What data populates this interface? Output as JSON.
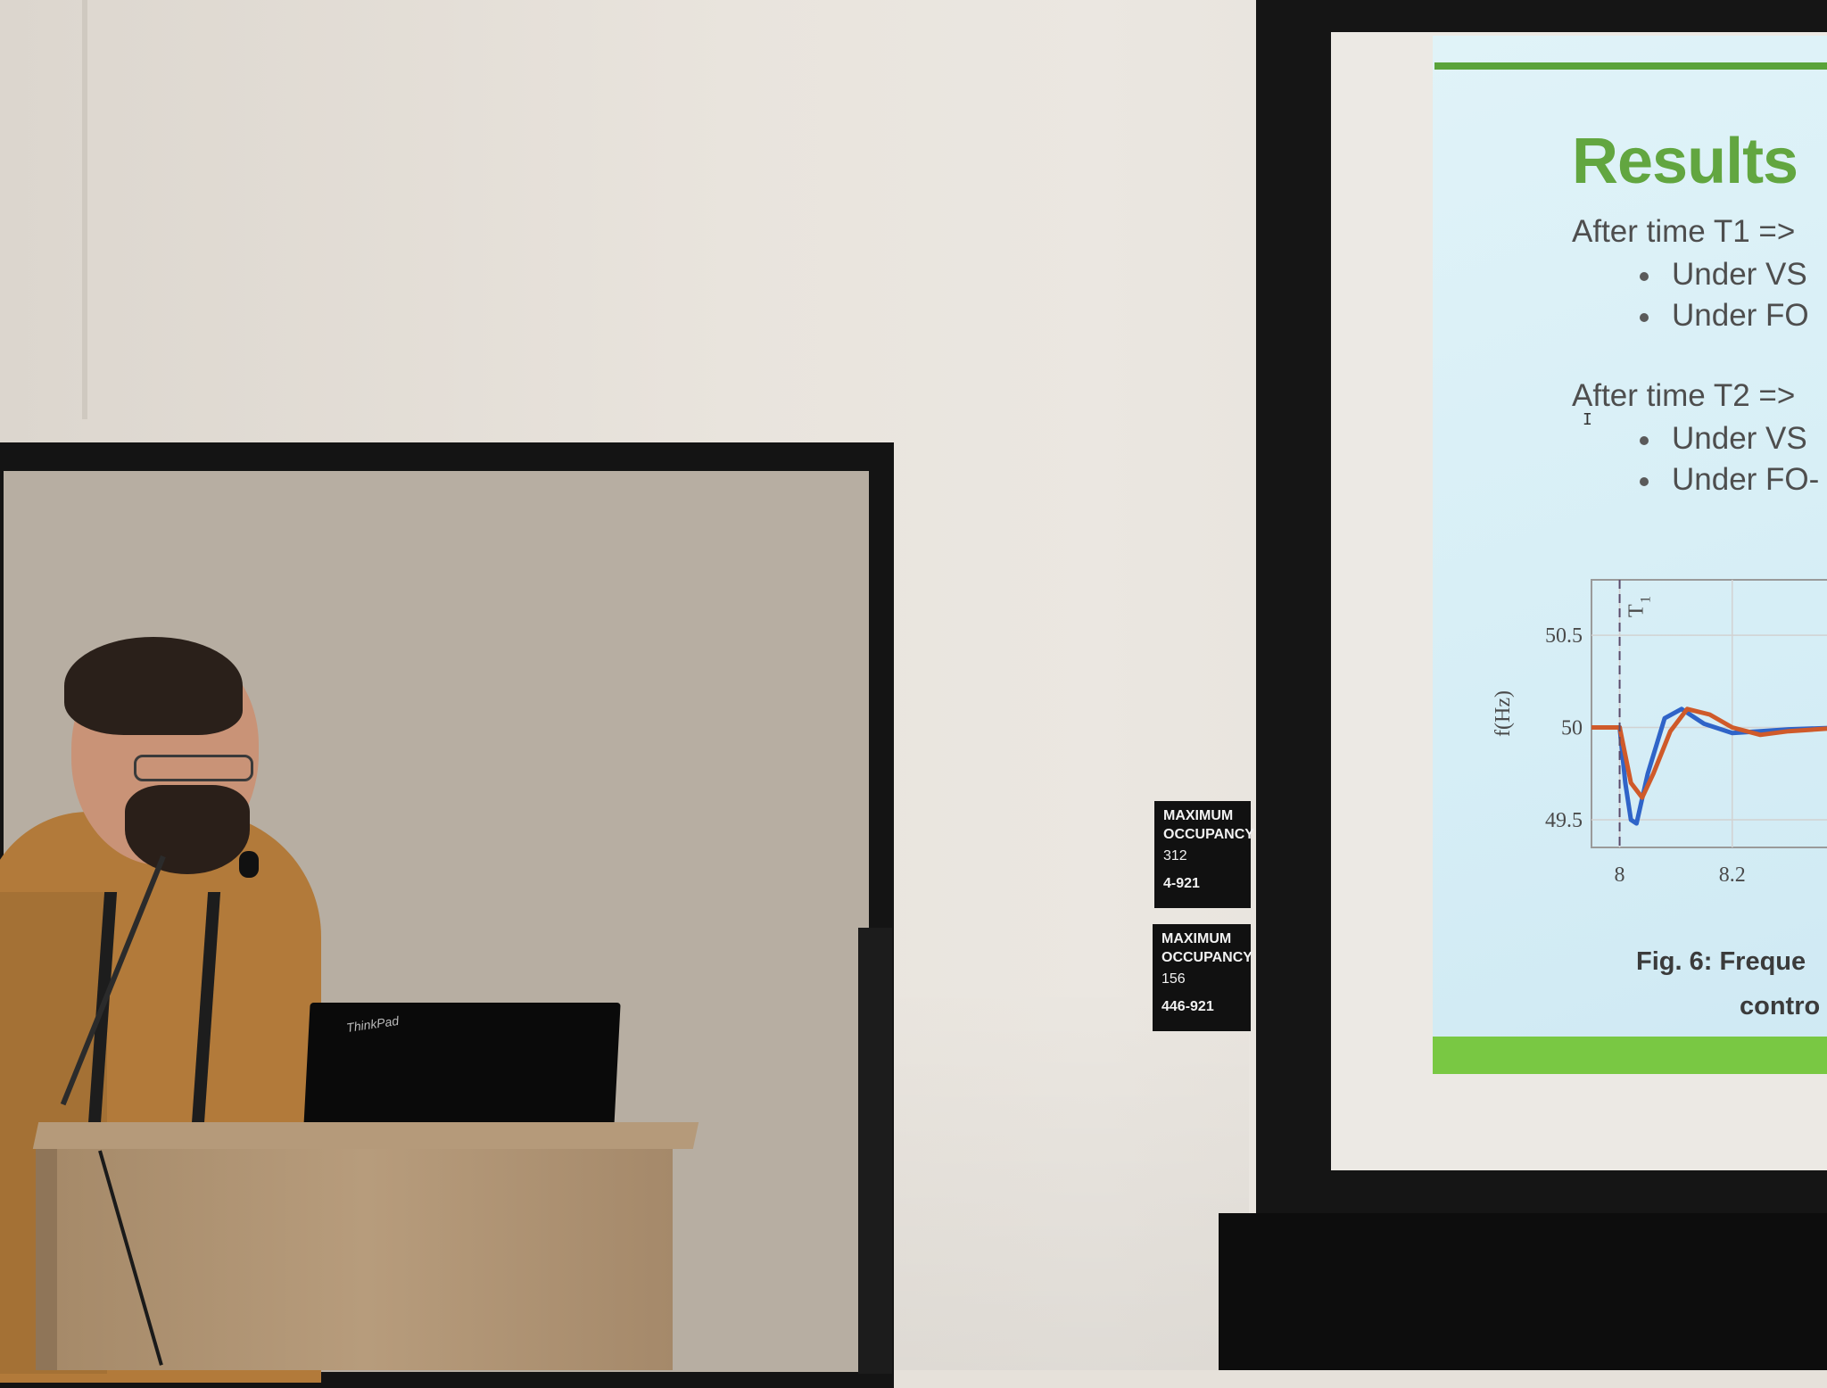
{
  "slide": {
    "title": "Results",
    "section_t1": {
      "heading": "After time T1 =>",
      "bullets": [
        "Under VS",
        "Under  FO"
      ]
    },
    "section_t2": {
      "heading": "After time T2 =>",
      "bullets": [
        "Under VS",
        "Under FO-"
      ]
    },
    "text_cursor": "I",
    "figure_caption": [
      "Fig. 6: Freque",
      "contro"
    ]
  },
  "chart_data": {
    "type": "line",
    "title": "",
    "xlabel": "",
    "ylabel": "f(Hz)",
    "x_ticks": [
      "8",
      "8.2"
    ],
    "y_ticks": [
      "50.5",
      "50",
      "49.5"
    ],
    "xlim": [
      7.95,
      8.4
    ],
    "ylim": [
      49.35,
      50.8
    ],
    "grid": true,
    "annotations": [
      {
        "text": "T",
        "subscript": "1",
        "x": 8.0
      }
    ],
    "series": [
      {
        "color": "#2f64c8",
        "x": [
          7.95,
          8.0,
          8.01,
          8.02,
          8.03,
          8.05,
          8.08,
          8.11,
          8.15,
          8.2,
          8.25,
          8.3,
          8.4
        ],
        "y": [
          50.0,
          50.0,
          49.7,
          49.5,
          49.48,
          49.75,
          50.05,
          50.1,
          50.02,
          49.97,
          49.98,
          49.99,
          50.0
        ]
      },
      {
        "color": "#cf5a2a",
        "x": [
          7.95,
          8.0,
          8.01,
          8.02,
          8.04,
          8.06,
          8.09,
          8.12,
          8.16,
          8.2,
          8.25,
          8.3,
          8.4
        ],
        "y": [
          50.0,
          50.0,
          49.85,
          49.7,
          49.62,
          49.75,
          49.98,
          50.1,
          50.07,
          50.0,
          49.96,
          49.98,
          50.0
        ]
      }
    ]
  },
  "signs": [
    {
      "title": "MAXIMUM",
      "subtitle": "OCCUPANCY",
      "number": "312",
      "code": "4-921"
    },
    {
      "title": "MAXIMUM",
      "subtitle": "OCCUPANCY",
      "number": "156",
      "code": "446-921"
    }
  ],
  "laptop": {
    "logo": "ThinkPad"
  },
  "colors": {
    "slide_accent": "#62a640",
    "slide_bar": "#79c843"
  }
}
